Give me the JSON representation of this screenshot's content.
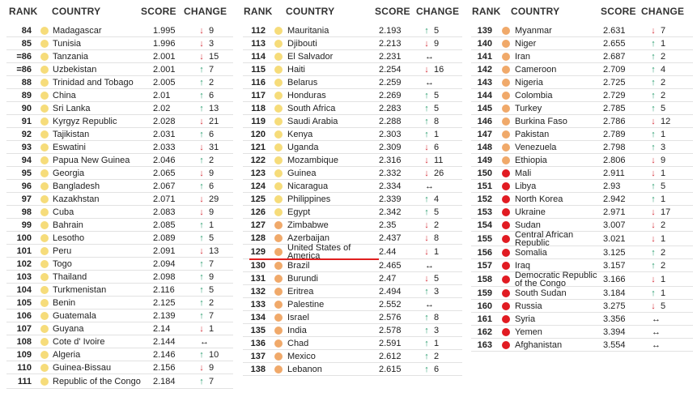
{
  "headers": {
    "rank": "RANK",
    "country": "COUNTRY",
    "score": "SCORE",
    "change": "CHANGE"
  },
  "colors": {
    "yellow": "#f6dc7a",
    "orange": "#f0a96a",
    "red": "#e11b22"
  },
  "columns": [
    {
      "rows": [
        {
          "rank": "84",
          "country": "Madagascar",
          "score": "1.995",
          "dir": "down",
          "change": "9",
          "level": "yellow"
        },
        {
          "rank": "85",
          "country": "Tunisia",
          "score": "1.996",
          "dir": "down",
          "change": "3",
          "level": "yellow"
        },
        {
          "rank": "=86",
          "country": "Tanzania",
          "score": "2.001",
          "dir": "down",
          "change": "15",
          "level": "yellow"
        },
        {
          "rank": "=86",
          "country": "Uzbekistan",
          "score": "2.001",
          "dir": "up",
          "change": "7",
          "level": "yellow"
        },
        {
          "rank": "88",
          "country": "Trinidad and Tobago",
          "score": "2.005",
          "dir": "up",
          "change": "2",
          "level": "yellow"
        },
        {
          "rank": "89",
          "country": "China",
          "score": "2.01",
          "dir": "up",
          "change": "6",
          "level": "yellow"
        },
        {
          "rank": "90",
          "country": "Sri Lanka",
          "score": "2.02",
          "dir": "up",
          "change": "13",
          "level": "yellow"
        },
        {
          "rank": "91",
          "country": "Kyrgyz Republic",
          "score": "2.028",
          "dir": "down",
          "change": "21",
          "level": "yellow"
        },
        {
          "rank": "92",
          "country": "Tajikistan",
          "score": "2.031",
          "dir": "up",
          "change": "6",
          "level": "yellow"
        },
        {
          "rank": "93",
          "country": "Eswatini",
          "score": "2.033",
          "dir": "down",
          "change": "31",
          "level": "yellow"
        },
        {
          "rank": "94",
          "country": "Papua New Guinea",
          "score": "2.046",
          "dir": "up",
          "change": "2",
          "level": "yellow"
        },
        {
          "rank": "95",
          "country": "Georgia",
          "score": "2.065",
          "dir": "down",
          "change": "9",
          "level": "yellow"
        },
        {
          "rank": "96",
          "country": "Bangladesh",
          "score": "2.067",
          "dir": "up",
          "change": "6",
          "level": "yellow"
        },
        {
          "rank": "97",
          "country": "Kazakhstan",
          "score": "2.071",
          "dir": "down",
          "change": "29",
          "level": "yellow"
        },
        {
          "rank": "98",
          "country": "Cuba",
          "score": "2.083",
          "dir": "down",
          "change": "9",
          "level": "yellow"
        },
        {
          "rank": "99",
          "country": "Bahrain",
          "score": "2.085",
          "dir": "up",
          "change": "1",
          "level": "yellow"
        },
        {
          "rank": "100",
          "country": "Lesotho",
          "score": "2.089",
          "dir": "up",
          "change": "5",
          "level": "yellow"
        },
        {
          "rank": "101",
          "country": "Peru",
          "score": "2.091",
          "dir": "down",
          "change": "13",
          "level": "yellow"
        },
        {
          "rank": "102",
          "country": "Togo",
          "score": "2.094",
          "dir": "up",
          "change": "7",
          "level": "yellow"
        },
        {
          "rank": "103",
          "country": "Thailand",
          "score": "2.098",
          "dir": "up",
          "change": "9",
          "level": "yellow"
        },
        {
          "rank": "104",
          "country": "Turkmenistan",
          "score": "2.116",
          "dir": "up",
          "change": "5",
          "level": "yellow"
        },
        {
          "rank": "105",
          "country": "Benin",
          "score": "2.125",
          "dir": "up",
          "change": "2",
          "level": "yellow"
        },
        {
          "rank": "106",
          "country": "Guatemala",
          "score": "2.139",
          "dir": "up",
          "change": "7",
          "level": "yellow"
        },
        {
          "rank": "107",
          "country": "Guyana",
          "score": "2.14",
          "dir": "down",
          "change": "1",
          "level": "yellow"
        },
        {
          "rank": "108",
          "country": "Cote d' Ivoire",
          "score": "2.144",
          "dir": "same",
          "change": "",
          "level": "yellow"
        },
        {
          "rank": "109",
          "country": "Algeria",
          "score": "2.146",
          "dir": "up",
          "change": "10",
          "level": "yellow"
        },
        {
          "rank": "110",
          "country": "Guinea-Bissau",
          "score": "2.156",
          "dir": "down",
          "change": "9",
          "level": "yellow"
        },
        {
          "rank": "111",
          "country": "Republic of the Congo",
          "score": "2.184",
          "dir": "up",
          "change": "7",
          "level": "yellow",
          "tall": true
        }
      ]
    },
    {
      "rows": [
        {
          "rank": "112",
          "country": "Mauritania",
          "score": "2.193",
          "dir": "up",
          "change": "5",
          "level": "yellow"
        },
        {
          "rank": "113",
          "country": "Djibouti",
          "score": "2.213",
          "dir": "down",
          "change": "9",
          "level": "yellow"
        },
        {
          "rank": "114",
          "country": "El Salvador",
          "score": "2.231",
          "dir": "same",
          "change": "",
          "level": "yellow"
        },
        {
          "rank": "115",
          "country": "Haiti",
          "score": "2.254",
          "dir": "down",
          "change": "16",
          "level": "yellow"
        },
        {
          "rank": "116",
          "country": "Belarus",
          "score": "2.259",
          "dir": "same",
          "change": "",
          "level": "yellow"
        },
        {
          "rank": "117",
          "country": "Honduras",
          "score": "2.269",
          "dir": "up",
          "change": "5",
          "level": "yellow"
        },
        {
          "rank": "118",
          "country": "South Africa",
          "score": "2.283",
          "dir": "up",
          "change": "5",
          "level": "yellow"
        },
        {
          "rank": "119",
          "country": "Saudi Arabia",
          "score": "2.288",
          "dir": "up",
          "change": "8",
          "level": "yellow"
        },
        {
          "rank": "120",
          "country": "Kenya",
          "score": "2.303",
          "dir": "up",
          "change": "1",
          "level": "yellow"
        },
        {
          "rank": "121",
          "country": "Uganda",
          "score": "2.309",
          "dir": "down",
          "change": "6",
          "level": "yellow"
        },
        {
          "rank": "122",
          "country": "Mozambique",
          "score": "2.316",
          "dir": "down",
          "change": "11",
          "level": "yellow"
        },
        {
          "rank": "123",
          "country": "Guinea",
          "score": "2.332",
          "dir": "down",
          "change": "26",
          "level": "yellow"
        },
        {
          "rank": "124",
          "country": "Nicaragua",
          "score": "2.334",
          "dir": "same",
          "change": "",
          "level": "yellow"
        },
        {
          "rank": "125",
          "country": "Philippines",
          "score": "2.339",
          "dir": "up",
          "change": "4",
          "level": "yellow"
        },
        {
          "rank": "126",
          "country": "Egypt",
          "score": "2.342",
          "dir": "up",
          "change": "5",
          "level": "yellow"
        },
        {
          "rank": "127",
          "country": "Zimbabwe",
          "score": "2.35",
          "dir": "down",
          "change": "2",
          "level": "orange"
        },
        {
          "rank": "128",
          "country": "Azerbaijan",
          "score": "2.437",
          "dir": "down",
          "change": "8",
          "level": "orange"
        },
        {
          "rank": "129",
          "country": "United States of America",
          "score": "2.44",
          "dir": "down",
          "change": "1",
          "level": "orange",
          "tall": true,
          "highlight": true
        },
        {
          "rank": "130",
          "country": "Brazil",
          "score": "2.465",
          "dir": "same",
          "change": "",
          "level": "orange"
        },
        {
          "rank": "131",
          "country": "Burundi",
          "score": "2.47",
          "dir": "down",
          "change": "5",
          "level": "orange"
        },
        {
          "rank": "132",
          "country": "Eritrea",
          "score": "2.494",
          "dir": "up",
          "change": "3",
          "level": "orange"
        },
        {
          "rank": "133",
          "country": "Palestine",
          "score": "2.552",
          "dir": "same",
          "change": "",
          "level": "orange"
        },
        {
          "rank": "134",
          "country": "Israel",
          "score": "2.576",
          "dir": "up",
          "change": "8",
          "level": "orange"
        },
        {
          "rank": "135",
          "country": "India",
          "score": "2.578",
          "dir": "up",
          "change": "3",
          "level": "orange"
        },
        {
          "rank": "136",
          "country": "Chad",
          "score": "2.591",
          "dir": "up",
          "change": "1",
          "level": "orange"
        },
        {
          "rank": "137",
          "country": "Mexico",
          "score": "2.612",
          "dir": "up",
          "change": "2",
          "level": "orange"
        },
        {
          "rank": "138",
          "country": "Lebanon",
          "score": "2.615",
          "dir": "up",
          "change": "6",
          "level": "orange"
        }
      ]
    },
    {
      "rows": [
        {
          "rank": "139",
          "country": "Myanmar",
          "score": "2.631",
          "dir": "down",
          "change": "7",
          "level": "orange"
        },
        {
          "rank": "140",
          "country": "Niger",
          "score": "2.655",
          "dir": "up",
          "change": "1",
          "level": "orange"
        },
        {
          "rank": "141",
          "country": "Iran",
          "score": "2.687",
          "dir": "up",
          "change": "2",
          "level": "orange"
        },
        {
          "rank": "142",
          "country": "Cameroon",
          "score": "2.709",
          "dir": "up",
          "change": "4",
          "level": "orange"
        },
        {
          "rank": "143",
          "country": "Nigeria",
          "score": "2.725",
          "dir": "up",
          "change": "2",
          "level": "orange"
        },
        {
          "rank": "144",
          "country": "Colombia",
          "score": "2.729",
          "dir": "up",
          "change": "2",
          "level": "orange"
        },
        {
          "rank": "145",
          "country": "Turkey",
          "score": "2.785",
          "dir": "up",
          "change": "5",
          "level": "orange"
        },
        {
          "rank": "146",
          "country": "Burkina Faso",
          "score": "2.786",
          "dir": "down",
          "change": "12",
          "level": "orange"
        },
        {
          "rank": "147",
          "country": "Pakistan",
          "score": "2.789",
          "dir": "up",
          "change": "1",
          "level": "orange"
        },
        {
          "rank": "148",
          "country": "Venezuela",
          "score": "2.798",
          "dir": "up",
          "change": "3",
          "level": "orange"
        },
        {
          "rank": "149",
          "country": "Ethiopia",
          "score": "2.806",
          "dir": "down",
          "change": "9",
          "level": "orange"
        },
        {
          "rank": "150",
          "country": "Mali",
          "score": "2.911",
          "dir": "down",
          "change": "1",
          "level": "red"
        },
        {
          "rank": "151",
          "country": "Libya",
          "score": "2.93",
          "dir": "up",
          "change": "5",
          "level": "red"
        },
        {
          "rank": "152",
          "country": "North Korea",
          "score": "2.942",
          "dir": "up",
          "change": "1",
          "level": "red"
        },
        {
          "rank": "153",
          "country": "Ukraine",
          "score": "2.971",
          "dir": "down",
          "change": "17",
          "level": "red"
        },
        {
          "rank": "154",
          "country": "Sudan",
          "score": "3.007",
          "dir": "down",
          "change": "2",
          "level": "red"
        },
        {
          "rank": "155",
          "country": "Central African Republic",
          "score": "3.021",
          "dir": "down",
          "change": "1",
          "level": "red",
          "tall": true
        },
        {
          "rank": "156",
          "country": "Somalia",
          "score": "3.125",
          "dir": "up",
          "change": "2",
          "level": "red"
        },
        {
          "rank": "157",
          "country": "Iraq",
          "score": "3.157",
          "dir": "up",
          "change": "2",
          "level": "red"
        },
        {
          "rank": "158",
          "country": "Democratic Republic of the Congo",
          "score": "3.166",
          "dir": "down",
          "change": "1",
          "level": "red",
          "tall": true
        },
        {
          "rank": "159",
          "country": "South Sudan",
          "score": "3.184",
          "dir": "up",
          "change": "1",
          "level": "red"
        },
        {
          "rank": "160",
          "country": "Russia",
          "score": "3.275",
          "dir": "down",
          "change": "5",
          "level": "red"
        },
        {
          "rank": "161",
          "country": "Syria",
          "score": "3.356",
          "dir": "same",
          "change": "",
          "level": "red"
        },
        {
          "rank": "162",
          "country": "Yemen",
          "score": "3.394",
          "dir": "same",
          "change": "",
          "level": "red"
        },
        {
          "rank": "163",
          "country": "Afghanistan",
          "score": "3.554",
          "dir": "same",
          "change": "",
          "level": "red"
        }
      ]
    }
  ]
}
